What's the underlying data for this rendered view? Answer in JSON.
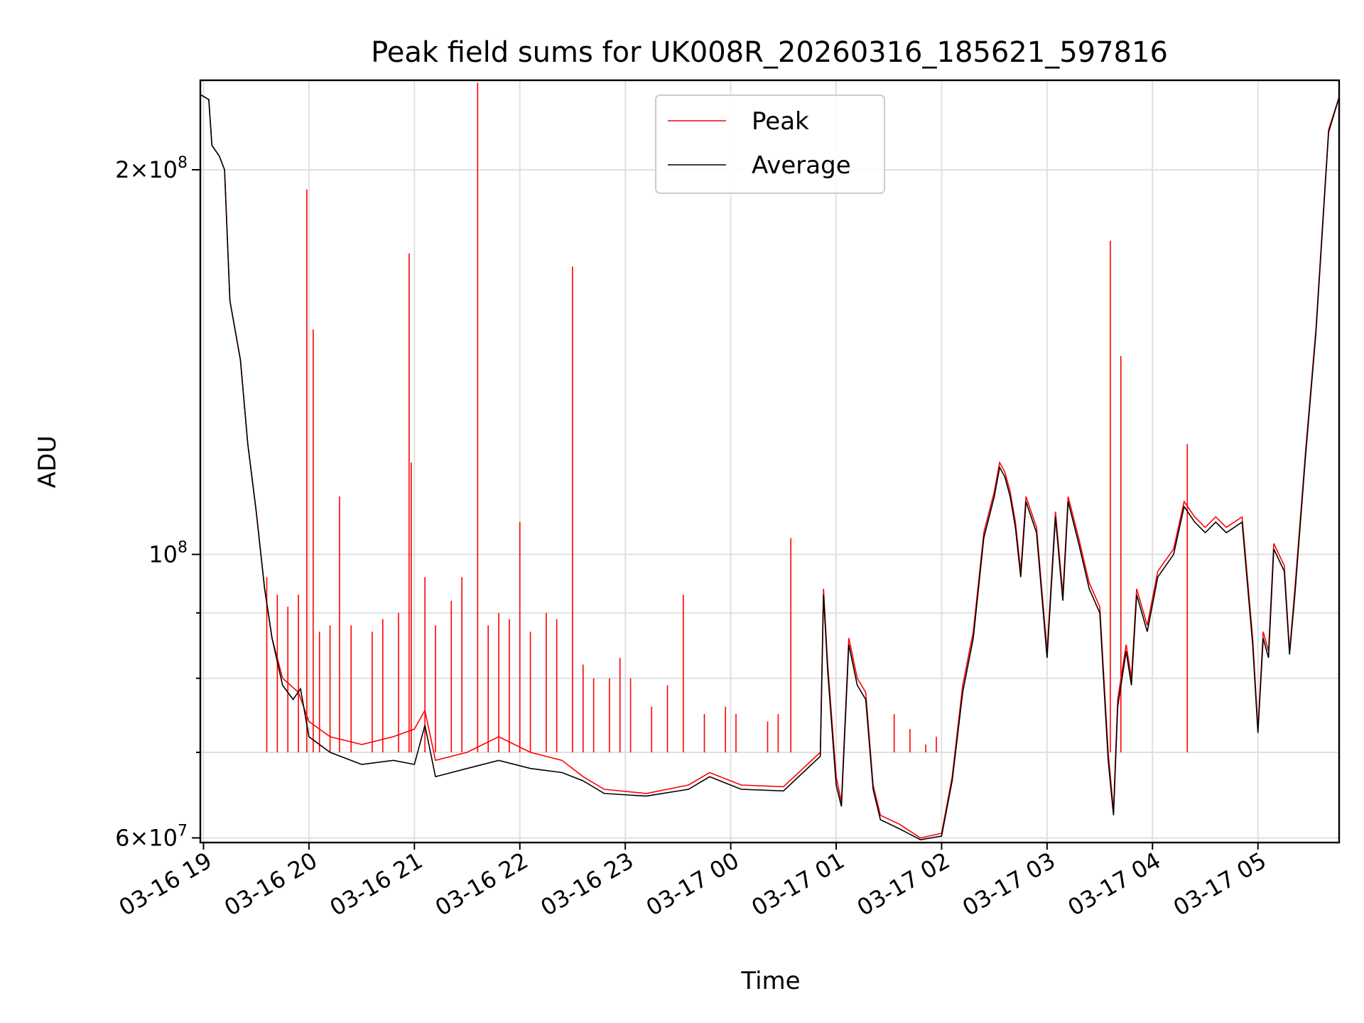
{
  "chart_data": {
    "type": "line",
    "title": "Peak field sums for UK008R_20260316_185621_597816",
    "xlabel": "Time",
    "ylabel": "ADU",
    "yscale": "log",
    "ylim": [
      59500000,
      235000000
    ],
    "xlim_hours": [
      18.97,
      29.77
    ],
    "grid": true,
    "legend_position": "top-center",
    "x_ticks": [
      {
        "hour": 19,
        "label": "03-16 19"
      },
      {
        "hour": 20,
        "label": "03-16 20"
      },
      {
        "hour": 21,
        "label": "03-16 21"
      },
      {
        "hour": 22,
        "label": "03-16 22"
      },
      {
        "hour": 23,
        "label": "03-16 23"
      },
      {
        "hour": 24,
        "label": "03-17 00"
      },
      {
        "hour": 25,
        "label": "03-17 01"
      },
      {
        "hour": 26,
        "label": "03-17 02"
      },
      {
        "hour": 27,
        "label": "03-17 03"
      },
      {
        "hour": 28,
        "label": "03-17 04"
      },
      {
        "hour": 29,
        "label": "03-17 05"
      }
    ],
    "y_ticks_major": [
      {
        "value": 60000000,
        "mantissa": "6",
        "exponent": "7",
        "times": "×10"
      },
      {
        "value": 100000000,
        "mantissa": "",
        "exponent": "8",
        "times": "10"
      },
      {
        "value": 200000000,
        "mantissa": "2",
        "exponent": "8",
        "times": "×10"
      }
    ],
    "y_ticks_minor": [
      70000000,
      80000000,
      90000000
    ],
    "series": [
      {
        "name": "Peak",
        "color": "#ff0000",
        "points": [
          [
            18.97,
            229
          ],
          [
            19.05,
            227
          ],
          [
            19.08,
            209
          ],
          [
            19.15,
            205
          ],
          [
            19.2,
            200
          ],
          [
            19.25,
            158
          ],
          [
            19.35,
            142
          ],
          [
            19.42,
            122
          ],
          [
            19.5,
            108
          ],
          [
            19.58,
            94
          ],
          [
            19.65,
            86
          ],
          [
            19.75,
            80
          ],
          [
            19.9,
            78
          ],
          [
            20.0,
            74
          ],
          [
            20.2,
            72
          ],
          [
            20.5,
            71
          ],
          [
            20.8,
            72
          ],
          [
            21.0,
            73
          ],
          [
            21.1,
            75.5
          ],
          [
            21.2,
            69
          ],
          [
            21.5,
            70
          ],
          [
            21.8,
            72
          ],
          [
            22.1,
            70
          ],
          [
            22.4,
            69
          ],
          [
            22.6,
            67
          ],
          [
            22.8,
            65.5
          ],
          [
            23.2,
            65
          ],
          [
            23.6,
            66
          ],
          [
            23.8,
            67.5
          ],
          [
            24.1,
            66
          ],
          [
            24.5,
            65.8
          ],
          [
            24.85,
            70
          ],
          [
            24.88,
            94
          ],
          [
            24.92,
            82
          ],
          [
            25.0,
            67
          ],
          [
            25.05,
            64
          ],
          [
            25.12,
            86
          ],
          [
            25.2,
            80
          ],
          [
            25.28,
            78
          ],
          [
            25.35,
            66
          ],
          [
            25.42,
            62.5
          ],
          [
            25.6,
            61.5
          ],
          [
            25.8,
            60
          ],
          [
            26.0,
            60.5
          ],
          [
            26.1,
            67
          ],
          [
            26.2,
            79
          ],
          [
            26.3,
            87
          ],
          [
            26.4,
            104
          ],
          [
            26.5,
            112
          ],
          [
            26.55,
            118
          ],
          [
            26.6,
            116
          ],
          [
            26.65,
            112
          ],
          [
            26.7,
            106
          ],
          [
            26.75,
            97
          ],
          [
            26.8,
            111
          ],
          [
            26.9,
            105
          ],
          [
            27.0,
            84
          ],
          [
            27.08,
            108
          ],
          [
            27.15,
            93
          ],
          [
            27.2,
            111
          ],
          [
            27.3,
            103
          ],
          [
            27.4,
            95
          ],
          [
            27.5,
            91
          ],
          [
            27.58,
            70
          ],
          [
            27.63,
            63
          ],
          [
            27.67,
            77
          ],
          [
            27.75,
            85
          ],
          [
            27.8,
            80
          ],
          [
            27.85,
            94
          ],
          [
            27.95,
            88
          ],
          [
            28.05,
            97
          ],
          [
            28.2,
            101
          ],
          [
            28.3,
            110
          ],
          [
            28.4,
            107
          ],
          [
            28.5,
            105
          ],
          [
            28.6,
            107
          ],
          [
            28.7,
            105
          ],
          [
            28.85,
            107
          ],
          [
            28.95,
            86
          ],
          [
            29.0,
            73
          ],
          [
            29.05,
            87
          ],
          [
            29.1,
            84
          ],
          [
            29.15,
            102
          ],
          [
            29.25,
            98
          ],
          [
            29.3,
            84
          ],
          [
            29.35,
            94
          ],
          [
            29.45,
            120
          ],
          [
            29.55,
            150
          ],
          [
            29.62,
            185
          ],
          [
            29.67,
            215
          ],
          [
            29.77,
            228
          ]
        ],
        "spikes": [
          [
            19.98,
            193
          ],
          [
            20.04,
            150
          ],
          [
            20.29,
            111
          ],
          [
            20.95,
            172
          ],
          [
            20.97,
            118
          ],
          [
            21.6,
            234
          ],
          [
            22.0,
            106
          ],
          [
            22.5,
            168
          ],
          [
            23.55,
            93
          ],
          [
            24.57,
            103
          ],
          [
            27.6,
            176
          ],
          [
            27.7,
            143
          ],
          [
            28.33,
            122
          ],
          [
            19.6,
            96
          ],
          [
            19.7,
            93
          ],
          [
            19.8,
            91
          ],
          [
            19.9,
            93
          ],
          [
            20.1,
            87
          ],
          [
            20.2,
            88
          ],
          [
            20.4,
            88
          ],
          [
            20.6,
            87
          ],
          [
            20.7,
            89
          ],
          [
            20.85,
            90
          ],
          [
            21.1,
            96
          ],
          [
            21.2,
            88
          ],
          [
            21.35,
            92
          ],
          [
            21.45,
            96
          ],
          [
            21.7,
            88
          ],
          [
            21.8,
            90
          ],
          [
            21.9,
            89
          ],
          [
            22.1,
            87
          ],
          [
            22.25,
            90
          ],
          [
            22.35,
            89
          ],
          [
            22.6,
            82
          ],
          [
            22.7,
            80
          ],
          [
            22.85,
            80
          ],
          [
            22.95,
            83
          ],
          [
            23.05,
            80
          ],
          [
            23.25,
            76
          ],
          [
            23.4,
            79
          ],
          [
            23.75,
            75
          ],
          [
            23.95,
            76
          ],
          [
            24.05,
            75
          ],
          [
            24.35,
            74
          ],
          [
            24.45,
            75
          ],
          [
            25.55,
            75
          ],
          [
            25.7,
            73
          ],
          [
            25.85,
            71
          ],
          [
            25.95,
            72
          ]
        ]
      },
      {
        "name": "Average",
        "color": "#000000",
        "points": [
          [
            18.97,
            229
          ],
          [
            19.05,
            227
          ],
          [
            19.08,
            209
          ],
          [
            19.15,
            205
          ],
          [
            19.2,
            200
          ],
          [
            19.25,
            158
          ],
          [
            19.35,
            142
          ],
          [
            19.42,
            122
          ],
          [
            19.5,
            108
          ],
          [
            19.58,
            94
          ],
          [
            19.65,
            86
          ],
          [
            19.75,
            79
          ],
          [
            19.85,
            77
          ],
          [
            19.92,
            78.5
          ],
          [
            20.0,
            72
          ],
          [
            20.2,
            70
          ],
          [
            20.5,
            68.5
          ],
          [
            20.8,
            69
          ],
          [
            21.0,
            68.5
          ],
          [
            21.1,
            73.5
          ],
          [
            21.2,
            67
          ],
          [
            21.5,
            68
          ],
          [
            21.8,
            69
          ],
          [
            22.1,
            68
          ],
          [
            22.4,
            67.5
          ],
          [
            22.6,
            66.5
          ],
          [
            22.8,
            65
          ],
          [
            23.2,
            64.7
          ],
          [
            23.6,
            65.5
          ],
          [
            23.8,
            67
          ],
          [
            24.1,
            65.5
          ],
          [
            24.5,
            65.3
          ],
          [
            24.85,
            69.5
          ],
          [
            24.88,
            93
          ],
          [
            24.92,
            81
          ],
          [
            25.0,
            66
          ],
          [
            25.05,
            63.5
          ],
          [
            25.12,
            85
          ],
          [
            25.2,
            79
          ],
          [
            25.28,
            77
          ],
          [
            25.35,
            65.5
          ],
          [
            25.42,
            62
          ],
          [
            25.6,
            61
          ],
          [
            25.8,
            59.8
          ],
          [
            26.0,
            60.2
          ],
          [
            26.1,
            66.5
          ],
          [
            26.2,
            78
          ],
          [
            26.3,
            86
          ],
          [
            26.4,
            103
          ],
          [
            26.5,
            111
          ],
          [
            26.55,
            117
          ],
          [
            26.6,
            115
          ],
          [
            26.65,
            111
          ],
          [
            26.7,
            105
          ],
          [
            26.75,
            96
          ],
          [
            26.8,
            110
          ],
          [
            26.9,
            104
          ],
          [
            27.0,
            83
          ],
          [
            27.08,
            107
          ],
          [
            27.15,
            92
          ],
          [
            27.2,
            110
          ],
          [
            27.3,
            102
          ],
          [
            27.4,
            94
          ],
          [
            27.5,
            90
          ],
          [
            27.58,
            69
          ],
          [
            27.63,
            62.5
          ],
          [
            27.67,
            76
          ],
          [
            27.75,
            84
          ],
          [
            27.8,
            79
          ],
          [
            27.85,
            93
          ],
          [
            27.95,
            87
          ],
          [
            28.05,
            96
          ],
          [
            28.2,
            100
          ],
          [
            28.3,
            109
          ],
          [
            28.4,
            106
          ],
          [
            28.5,
            104
          ],
          [
            28.6,
            106
          ],
          [
            28.7,
            104
          ],
          [
            28.85,
            106
          ],
          [
            28.95,
            85
          ],
          [
            29.0,
            72.5
          ],
          [
            29.05,
            86
          ],
          [
            29.1,
            83
          ],
          [
            29.15,
            101
          ],
          [
            29.25,
            97
          ],
          [
            29.3,
            83.5
          ],
          [
            29.35,
            93
          ],
          [
            29.45,
            119
          ],
          [
            29.55,
            149
          ],
          [
            29.62,
            184
          ],
          [
            29.67,
            214
          ],
          [
            29.77,
            228
          ]
        ]
      }
    ],
    "value_unit_multiplier": 1000000
  }
}
